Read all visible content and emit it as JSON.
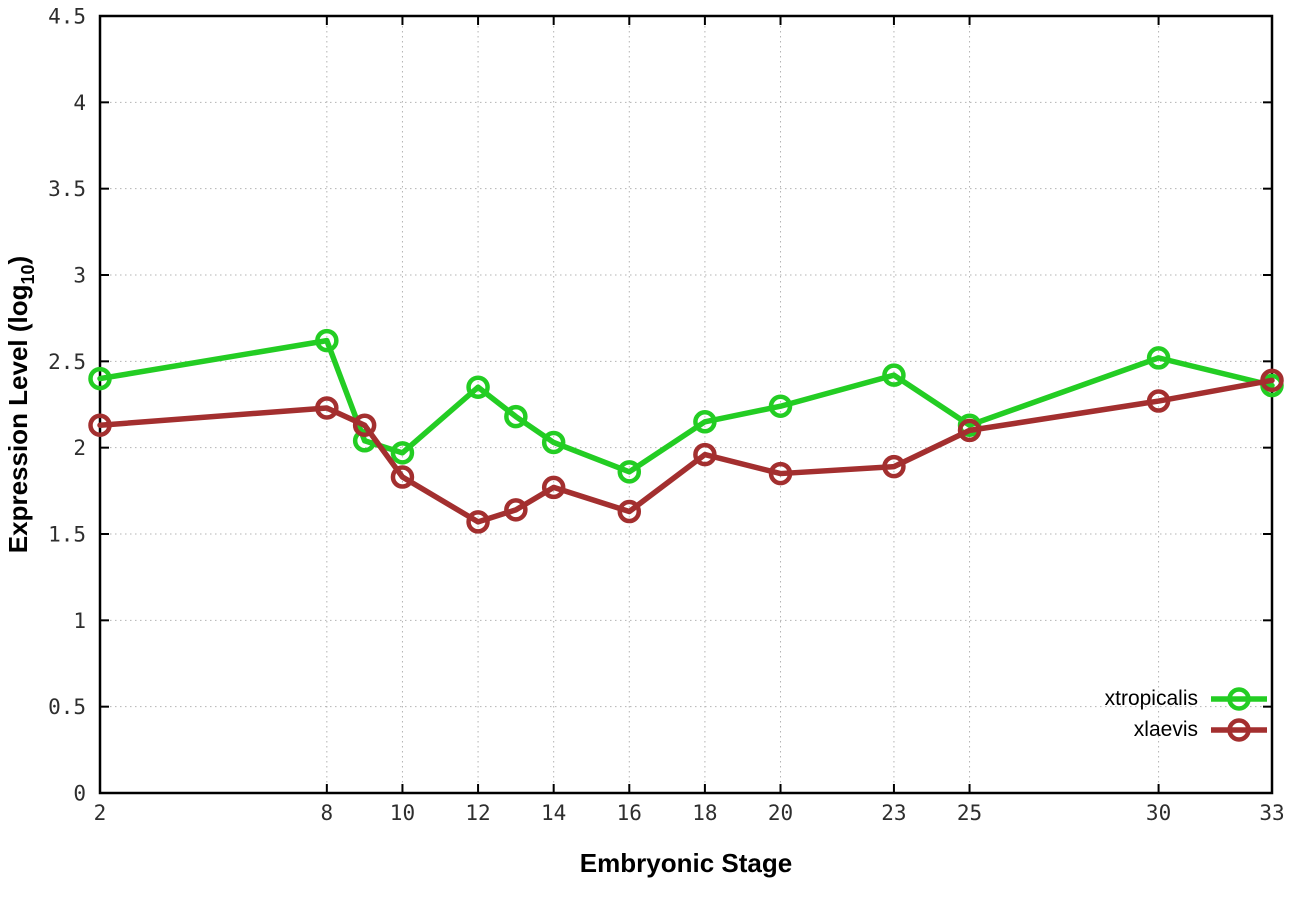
{
  "chart_data": {
    "type": "line",
    "title": "",
    "xlabel": "Embryonic Stage",
    "ylabel": "Expression Level (log10)",
    "ylabel_parts": {
      "prefix": "Expression Level (log",
      "sub": "10",
      "suffix": ")"
    },
    "xlim": [
      2,
      33
    ],
    "ylim": [
      0,
      4.5
    ],
    "grid": true,
    "legend_position": "inside-bottom-right",
    "xticks": [
      2,
      8,
      10,
      12,
      14,
      16,
      18,
      20,
      23,
      25,
      30,
      33
    ],
    "ytick_labels": [
      "0",
      "0.5",
      "1",
      "1.5",
      "2",
      "2.5",
      "3",
      "3.5",
      "4",
      "4.5"
    ],
    "x": [
      2,
      8,
      9,
      10,
      12,
      13,
      14,
      16,
      18,
      20,
      23,
      25,
      30,
      33
    ],
    "series": [
      {
        "name": "xtropicalis",
        "color": "#23cd23",
        "marker": "open-circle",
        "values": [
          2.4,
          2.62,
          2.04,
          1.97,
          2.35,
          2.18,
          2.03,
          1.86,
          2.15,
          2.24,
          2.42,
          2.13,
          2.52,
          2.36
        ]
      },
      {
        "name": "xlaevis",
        "color": "#a32f2f",
        "marker": "open-circle",
        "values": [
          2.13,
          2.23,
          2.13,
          1.83,
          1.57,
          1.64,
          1.77,
          1.63,
          1.96,
          1.85,
          1.89,
          2.1,
          2.27,
          2.39
        ]
      }
    ],
    "style": {
      "border_color": "#000000",
      "grid_color": "#b3b3b3",
      "tick_label_color": "#2e2e2e"
    }
  }
}
